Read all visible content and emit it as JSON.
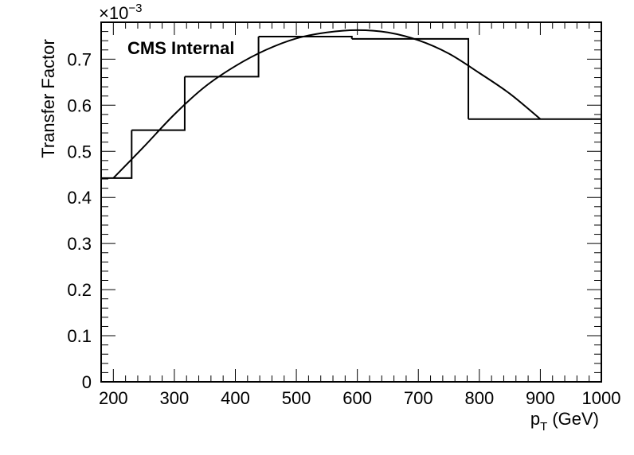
{
  "chart_data": {
    "type": "histogram-with-fit",
    "annotation": "CMS Internal",
    "xlabel": {
      "main": "p",
      "sub": "T",
      "unit": "(GeV)"
    },
    "ylabel": "Transfer Factor",
    "y_exponent": {
      "base": "×10",
      "power": "−3"
    },
    "xlim": [
      180,
      1000
    ],
    "ylim": [
      0,
      0.78
    ],
    "x_ticks": [
      "200",
      "300",
      "400",
      "500",
      "600",
      "700",
      "800",
      "900",
      "1000"
    ],
    "y_ticks": [
      "0",
      "0.1",
      "0.2",
      "0.3",
      "0.4",
      "0.5",
      "0.6",
      "0.7"
    ],
    "histogram": {
      "bins": [
        {
          "x0": 180,
          "x1": 230,
          "value": 0.442
        },
        {
          "x0": 230,
          "x1": 317,
          "value": 0.546
        },
        {
          "x0": 317,
          "x1": 438,
          "value": 0.662
        },
        {
          "x0": 438,
          "x1": 591,
          "value": 0.749
        },
        {
          "x0": 591,
          "x1": 782,
          "value": 0.744
        },
        {
          "x0": 782,
          "x1": 1000,
          "value": 0.57
        }
      ]
    },
    "fit_curve": {
      "x": [
        200,
        250,
        300,
        350,
        400,
        450,
        500,
        550,
        600,
        650,
        700,
        750,
        800,
        850,
        900
      ],
      "y": [
        0.442,
        0.51,
        0.58,
        0.64,
        0.685,
        0.72,
        0.745,
        0.758,
        0.763,
        0.758,
        0.741,
        0.712,
        0.67,
        0.625,
        0.57
      ]
    },
    "grid": false,
    "legend": "none"
  }
}
